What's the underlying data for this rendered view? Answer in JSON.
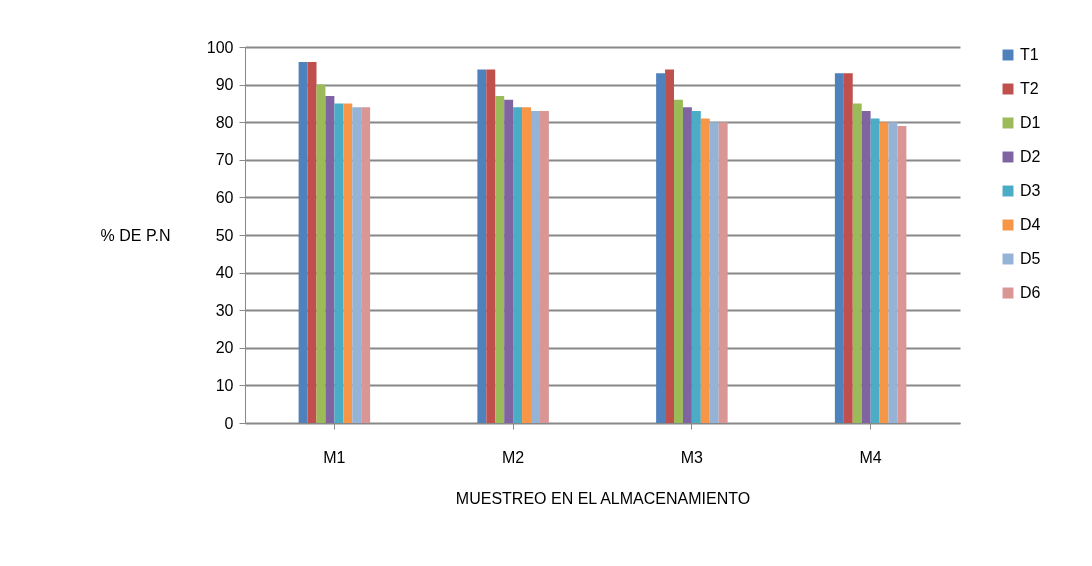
{
  "chart_data": {
    "type": "bar",
    "xlabel": "MUESTREO EN EL ALMACENAMIENTO",
    "ylabel": "% DE P.N",
    "categories": [
      "M1",
      "M2",
      "M3",
      "M4"
    ],
    "series": [
      {
        "name": "T1",
        "color": "#4f81bd",
        "values": [
          96,
          94,
          93,
          93
        ]
      },
      {
        "name": "T2",
        "color": "#c0504d",
        "values": [
          96,
          94,
          94,
          93
        ]
      },
      {
        "name": "D1",
        "color": "#9bbb59",
        "values": [
          90,
          87,
          86,
          85
        ]
      },
      {
        "name": "D2",
        "color": "#8064a2",
        "values": [
          87,
          86,
          84,
          83
        ]
      },
      {
        "name": "D3",
        "color": "#4bacc6",
        "values": [
          85,
          84,
          83,
          81
        ]
      },
      {
        "name": "D4",
        "color": "#f79646",
        "values": [
          85,
          84,
          81,
          80
        ]
      },
      {
        "name": "D5",
        "color": "#95b3d7",
        "values": [
          84,
          83,
          80,
          80
        ]
      },
      {
        "name": "D6",
        "color": "#d99694",
        "values": [
          84,
          83,
          80,
          79
        ]
      }
    ],
    "ylim": [
      0,
      100
    ],
    "yticks": [
      0,
      10,
      20,
      30,
      40,
      50,
      60,
      70,
      80,
      90,
      100
    ],
    "grid": "y",
    "legend": "right"
  }
}
